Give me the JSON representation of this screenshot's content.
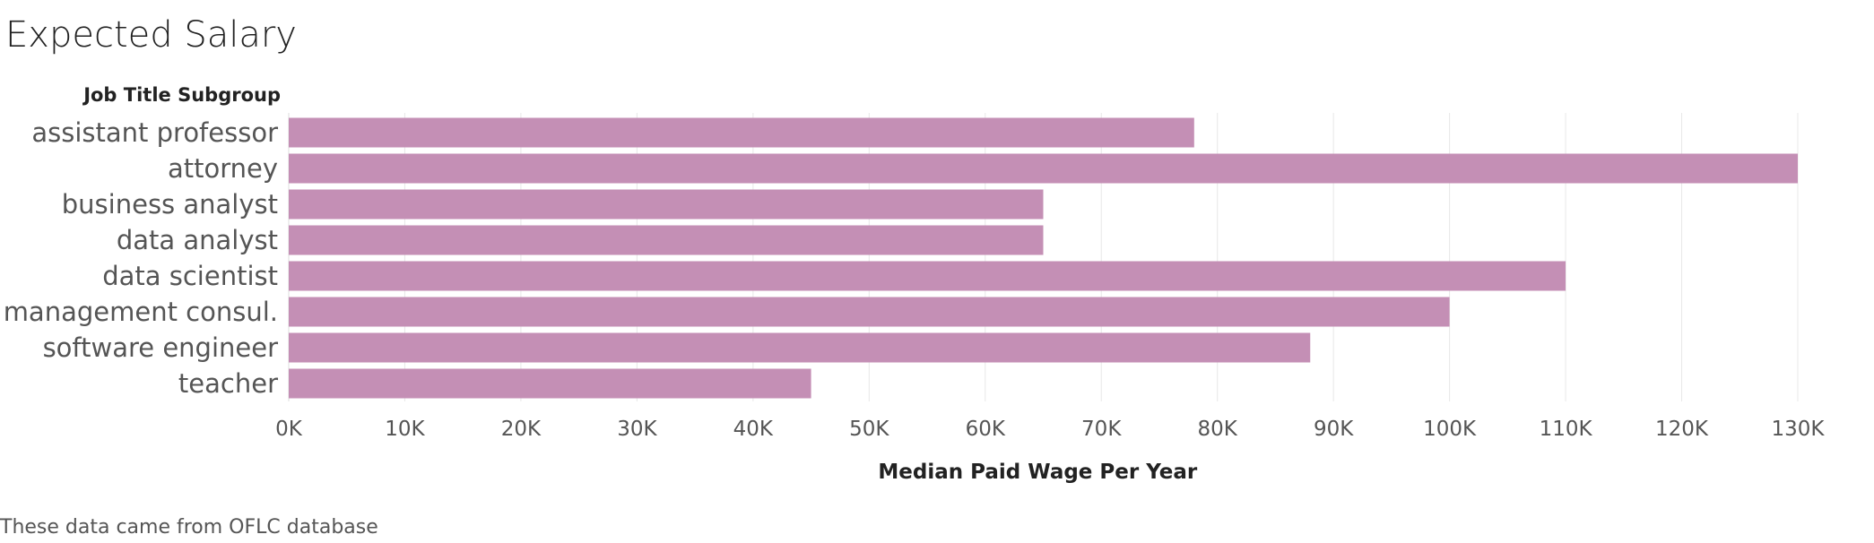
{
  "title": "Expected Salary",
  "row_header": "Job Title Subgroup",
  "footnote": "These data came from OFLC database",
  "colors": {
    "bar": "#c48fb5",
    "grid": "#e8e8e8"
  },
  "chart_data": {
    "type": "bar",
    "orientation": "horizontal",
    "categories": [
      "assistant professor",
      "attorney",
      "business analyst",
      "data analyst",
      "data scientist",
      "management consul.",
      "software engineer",
      "teacher"
    ],
    "values": [
      78000,
      130000,
      65000,
      65000,
      110000,
      100000,
      88000,
      45000
    ],
    "xlabel": "Median Paid Wage Per Year",
    "ylabel": "Job Title Subgroup",
    "xlim": [
      0,
      136000
    ],
    "x_ticks": [
      0,
      10000,
      20000,
      30000,
      40000,
      50000,
      60000,
      70000,
      80000,
      90000,
      100000,
      110000,
      120000,
      130000
    ],
    "x_tick_labels": [
      "0K",
      "10K",
      "20K",
      "30K",
      "40K",
      "50K",
      "60K",
      "70K",
      "80K",
      "90K",
      "100K",
      "110K",
      "120K",
      "130K"
    ],
    "grid": true,
    "legend": "none"
  }
}
